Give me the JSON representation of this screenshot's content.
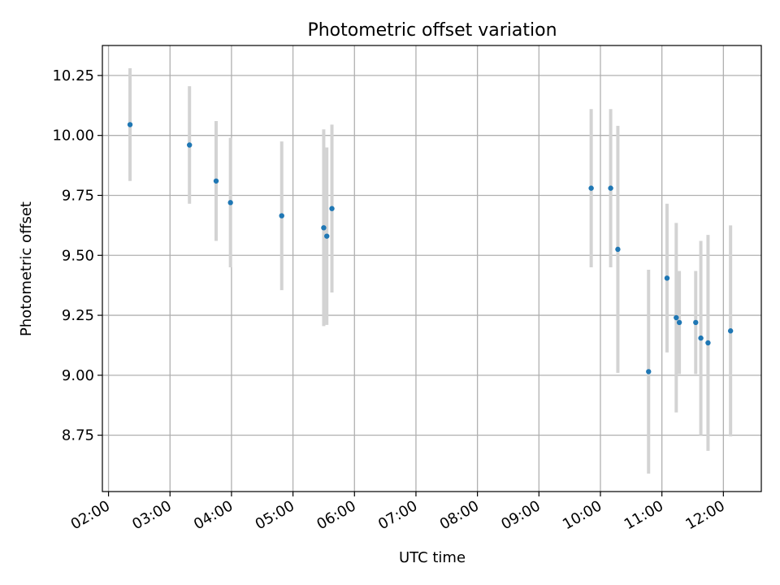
{
  "chart_data": {
    "type": "scatter",
    "title": "Photometric offset variation",
    "xlabel": "UTC time",
    "ylabel": "Photometric offset",
    "x_tick_labels": [
      "02:00",
      "03:00",
      "04:00",
      "05:00",
      "06:00",
      "07:00",
      "08:00",
      "09:00",
      "10:00",
      "11:00",
      "12:00"
    ],
    "y_tick_values": [
      8.75,
      9.0,
      9.25,
      9.5,
      9.75,
      10.0,
      10.25
    ],
    "y_tick_labels": [
      "8.75",
      "9.00",
      "9.25",
      "9.50",
      "9.75",
      "10.00",
      "10.25"
    ],
    "xlim": [
      "01:54",
      "12:37"
    ],
    "ylim": [
      8.515,
      10.375
    ],
    "grid": true,
    "point_color": "#1f77b4",
    "errorbar_color": "#d3d3d3",
    "points": [
      {
        "time": "02:21",
        "y": 10.045,
        "err": 0.235
      },
      {
        "time": "03:19",
        "y": 9.96,
        "err": 0.245
      },
      {
        "time": "03:45",
        "y": 9.81,
        "err": 0.25
      },
      {
        "time": "03:59",
        "y": 9.72,
        "err": 0.27
      },
      {
        "time": "04:49",
        "y": 9.665,
        "err": 0.31
      },
      {
        "time": "05:30",
        "y": 9.615,
        "err": 0.41
      },
      {
        "time": "05:33",
        "y": 9.58,
        "err": 0.37
      },
      {
        "time": "05:38",
        "y": 9.695,
        "err": 0.35
      },
      {
        "time": "09:51",
        "y": 9.78,
        "err": 0.33
      },
      {
        "time": "10:10",
        "y": 9.78,
        "err": 0.33
      },
      {
        "time": "10:17",
        "y": 9.525,
        "err": 0.515
      },
      {
        "time": "10:47",
        "y": 9.015,
        "err": 0.425
      },
      {
        "time": "11:05",
        "y": 9.405,
        "err": 0.31
      },
      {
        "time": "11:14",
        "y": 9.24,
        "err": 0.395
      },
      {
        "time": "11:17",
        "y": 9.22,
        "err": 0.215
      },
      {
        "time": "11:33",
        "y": 9.22,
        "err": 0.215
      },
      {
        "time": "11:38",
        "y": 9.155,
        "err": 0.405
      },
      {
        "time": "11:45",
        "y": 9.135,
        "err": 0.45
      },
      {
        "time": "12:07",
        "y": 9.185,
        "err": 0.44
      }
    ]
  }
}
